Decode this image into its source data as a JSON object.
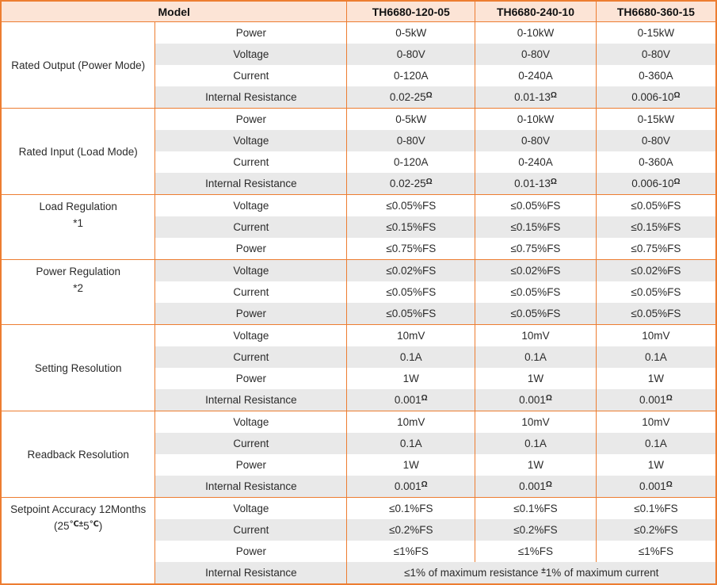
{
  "colors": {
    "border_orange": "#ED7D31",
    "header_bg": "#FCE4D6",
    "row_band_gray": "#E9E9E9",
    "text": "#2b2b2b"
  },
  "header": {
    "model_label": "Model",
    "models": [
      "TH6680-120-05",
      "TH6680-240-10",
      "TH6680-360-15"
    ]
  },
  "groups": [
    {
      "label": [
        "Rated Output (Power Mode)"
      ],
      "valign": "middle",
      "rows": [
        {
          "param": "Power",
          "values": [
            "0-5kW",
            "0-10kW",
            "0-15kW"
          ]
        },
        {
          "param": "Voltage",
          "values": [
            "0-80V",
            "0-80V",
            "0-80V"
          ]
        },
        {
          "param": "Current",
          "values": [
            "0-120A",
            "0-240A",
            "0-360A"
          ]
        },
        {
          "param": "Internal Resistance",
          "values": [
            {
              "segments": [
                {
                  "t": "0.02-25"
                },
                {
                  "s": "Ω"
                }
              ]
            },
            {
              "segments": [
                {
                  "t": "0.01-13"
                },
                {
                  "s": "Ω"
                }
              ]
            },
            {
              "segments": [
                {
                  "t": "0.006-10"
                },
                {
                  "s": "Ω"
                }
              ]
            }
          ]
        }
      ]
    },
    {
      "label": [
        "Rated Input (Load Mode)"
      ],
      "valign": "middle",
      "rows": [
        {
          "param": "Power",
          "values": [
            "0-5kW",
            "0-10kW",
            "0-15kW"
          ]
        },
        {
          "param": "Voltage",
          "values": [
            "0-80V",
            "0-80V",
            "0-80V"
          ]
        },
        {
          "param": "Current",
          "values": [
            "0-120A",
            "0-240A",
            "0-360A"
          ]
        },
        {
          "param": "Internal Resistance",
          "values": [
            {
              "segments": [
                {
                  "t": "0.02-25"
                },
                {
                  "s": "Ω"
                }
              ]
            },
            {
              "segments": [
                {
                  "t": "0.01-13"
                },
                {
                  "s": "Ω"
                }
              ]
            },
            {
              "segments": [
                {
                  "t": "0.006-10"
                },
                {
                  "s": "Ω"
                }
              ]
            }
          ]
        }
      ]
    },
    {
      "label": [
        "Load Regulation",
        "*1"
      ],
      "valign": "top",
      "rows": [
        {
          "param": "Voltage",
          "values": [
            "≤0.05%FS",
            "≤0.05%FS",
            "≤0.05%FS"
          ]
        },
        {
          "param": "Current",
          "values": [
            "≤0.15%FS",
            "≤0.15%FS",
            "≤0.15%FS"
          ]
        },
        {
          "param": "Power",
          "values": [
            "≤0.75%FS",
            "≤0.75%FS",
            "≤0.75%FS"
          ]
        }
      ]
    },
    {
      "label": [
        "Power Regulation",
        "*2"
      ],
      "valign": "top",
      "rows": [
        {
          "param": "Voltage",
          "values": [
            "≤0.02%FS",
            "≤0.02%FS",
            "≤0.02%FS"
          ]
        },
        {
          "param": "Current",
          "values": [
            "≤0.05%FS",
            "≤0.05%FS",
            "≤0.05%FS"
          ]
        },
        {
          "param": "Power",
          "values": [
            "≤0.05%FS",
            "≤0.05%FS",
            "≤0.05%FS"
          ]
        }
      ]
    },
    {
      "label": [
        "Setting Resolution"
      ],
      "valign": "middle",
      "rows": [
        {
          "param": "Voltage",
          "values": [
            "10mV",
            "10mV",
            "10mV"
          ]
        },
        {
          "param": "Current",
          "values": [
            "0.1A",
            "0.1A",
            "0.1A"
          ]
        },
        {
          "param": "Power",
          "values": [
            "1W",
            "1W",
            "1W"
          ]
        },
        {
          "param": "Internal Resistance",
          "values": [
            {
              "segments": [
                {
                  "t": "0.001"
                },
                {
                  "s": "Ω"
                }
              ]
            },
            {
              "segments": [
                {
                  "t": "0.001"
                },
                {
                  "s": "Ω"
                }
              ]
            },
            {
              "segments": [
                {
                  "t": "0.001"
                },
                {
                  "s": "Ω"
                }
              ]
            }
          ]
        }
      ]
    },
    {
      "label": [
        "Readback Resolution"
      ],
      "valign": "middle",
      "rows": [
        {
          "param": "Voltage",
          "values": [
            "10mV",
            "10mV",
            "10mV"
          ]
        },
        {
          "param": "Current",
          "values": [
            "0.1A",
            "0.1A",
            "0.1A"
          ]
        },
        {
          "param": "Power",
          "values": [
            "1W",
            "1W",
            "1W"
          ]
        },
        {
          "param": "Internal Resistance",
          "values": [
            {
              "segments": [
                {
                  "t": "0.001"
                },
                {
                  "s": "Ω"
                }
              ]
            },
            {
              "segments": [
                {
                  "t": "0.001"
                },
                {
                  "s": "Ω"
                }
              ]
            },
            {
              "segments": [
                {
                  "t": "0.001"
                },
                {
                  "s": "Ω"
                }
              ]
            }
          ]
        }
      ]
    },
    {
      "label": [
        "Setpoint Accuracy 12Months",
        {
          "segments": [
            {
              "t": "(25"
            },
            {
              "s": "℃±"
            },
            {
              "t": "5"
            },
            {
              "s": "℃"
            },
            {
              "t": ")"
            }
          ]
        }
      ],
      "valign": "top",
      "rows": [
        {
          "param": "Voltage",
          "values": [
            "≤0.1%FS",
            "≤0.1%FS",
            "≤0.1%FS"
          ]
        },
        {
          "param": "Current",
          "values": [
            "≤0.2%FS",
            "≤0.2%FS",
            "≤0.2%FS"
          ]
        },
        {
          "param": "Power",
          "values": [
            "≤1%FS",
            "≤1%FS",
            "≤1%FS"
          ]
        },
        {
          "param": "Internal Resistance",
          "merged": true,
          "values": [
            {
              "segments": [
                {
                  "t": "≤1% of maximum resistance "
                },
                {
                  "s": "±"
                },
                {
                  "t": "1% of maximum current"
                }
              ]
            }
          ]
        }
      ]
    }
  ]
}
